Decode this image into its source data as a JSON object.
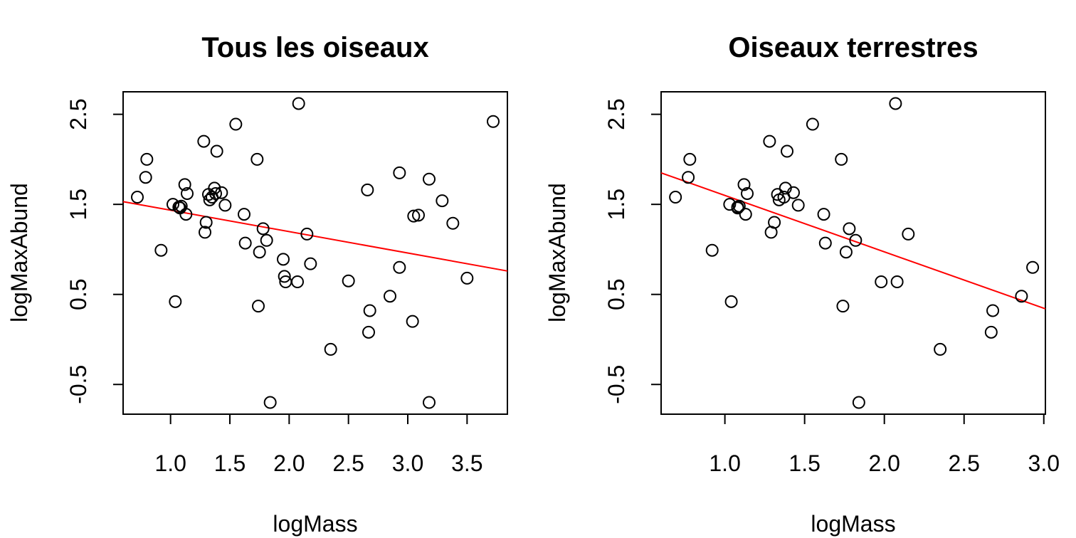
{
  "chart_data": [
    {
      "type": "scatter",
      "title": "Tous les oiseaux",
      "xlabel": "logMass",
      "ylabel": "logMaxAbund",
      "xlim": [
        0.6,
        3.84
      ],
      "ylim": [
        -0.83,
        2.75
      ],
      "xticks": [
        1.0,
        1.5,
        2.0,
        2.5,
        3.0,
        3.5
      ],
      "xtick_labels": [
        "1.0",
        "1.5",
        "2.0",
        "2.5",
        "3.0",
        "3.5"
      ],
      "yticks": [
        -0.5,
        0.5,
        1.5,
        2.5
      ],
      "ytick_labels": [
        "-0.5",
        "0.5",
        "1.5",
        "2.5"
      ],
      "grid": false,
      "regression_line": {
        "color": "#ff0000",
        "x": [
          0.6,
          3.84
        ],
        "y": [
          1.53,
          0.76
        ]
      },
      "points": {
        "x": [
          0.72,
          0.79,
          0.8,
          0.92,
          1.02,
          1.04,
          1.07,
          1.08,
          1.09,
          1.12,
          1.13,
          1.14,
          1.28,
          1.29,
          1.3,
          1.32,
          1.33,
          1.35,
          1.37,
          1.38,
          1.39,
          1.43,
          1.46,
          1.55,
          1.62,
          1.63,
          1.73,
          1.74,
          1.75,
          1.78,
          1.81,
          1.84,
          1.95,
          1.96,
          1.97,
          2.07,
          2.08,
          2.15,
          2.18,
          2.35,
          2.5,
          2.66,
          2.67,
          2.68,
          2.85,
          2.93,
          2.93,
          3.04,
          3.05,
          3.09,
          3.18,
          3.18,
          3.29,
          3.38,
          3.5,
          3.72
        ],
        "y": [
          1.58,
          1.8,
          2.0,
          0.99,
          1.5,
          0.42,
          1.47,
          1.46,
          1.48,
          1.72,
          1.39,
          1.62,
          2.2,
          1.19,
          1.3,
          1.61,
          1.55,
          1.58,
          1.68,
          1.62,
          2.09,
          1.63,
          1.49,
          2.39,
          1.39,
          1.07,
          2.0,
          0.37,
          0.97,
          1.23,
          1.1,
          -0.7,
          0.89,
          0.7,
          0.64,
          0.64,
          2.62,
          1.17,
          0.84,
          -0.11,
          0.65,
          1.66,
          0.08,
          0.32,
          0.48,
          1.85,
          0.8,
          0.2,
          1.37,
          1.38,
          1.78,
          -0.7,
          1.54,
          1.29,
          0.68,
          2.42
        ]
      }
    },
    {
      "type": "scatter",
      "title": "Oiseaux terrestres",
      "xlabel": "logMass",
      "ylabel": "logMaxAbund",
      "xlim": [
        0.6,
        3.01
      ],
      "ylim": [
        -0.83,
        2.75
      ],
      "xticks": [
        1.0,
        1.5,
        2.0,
        2.5,
        3.0
      ],
      "xtick_labels": [
        "1.0",
        "1.5",
        "2.0",
        "2.5",
        "3.0"
      ],
      "yticks": [
        -0.5,
        0.5,
        1.5,
        2.5
      ],
      "ytick_labels": [
        "-0.5",
        "0.5",
        "1.5",
        "2.5"
      ],
      "grid": false,
      "regression_line": {
        "color": "#ff0000",
        "x": [
          0.6,
          3.01
        ],
        "y": [
          1.85,
          0.34
        ]
      },
      "points": {
        "x": [
          0.69,
          0.77,
          0.78,
          0.92,
          1.03,
          1.04,
          1.08,
          1.08,
          1.09,
          1.12,
          1.13,
          1.14,
          1.28,
          1.29,
          1.31,
          1.33,
          1.34,
          1.37,
          1.38,
          1.39,
          1.43,
          1.46,
          1.55,
          1.62,
          1.63,
          1.73,
          1.74,
          1.76,
          1.78,
          1.82,
          1.84,
          1.98,
          2.07,
          2.08,
          2.15,
          2.35,
          2.67,
          2.68,
          2.86,
          2.93
        ],
        "y": [
          1.58,
          1.8,
          2.0,
          0.99,
          1.5,
          0.42,
          1.47,
          1.46,
          1.48,
          1.72,
          1.39,
          1.62,
          2.2,
          1.19,
          1.3,
          1.61,
          1.55,
          1.58,
          1.68,
          2.09,
          1.63,
          1.49,
          2.39,
          1.39,
          1.07,
          2.0,
          0.37,
          0.97,
          1.23,
          1.1,
          -0.7,
          0.64,
          2.62,
          0.64,
          1.17,
          -0.11,
          0.08,
          0.32,
          0.48,
          0.8
        ]
      }
    }
  ]
}
